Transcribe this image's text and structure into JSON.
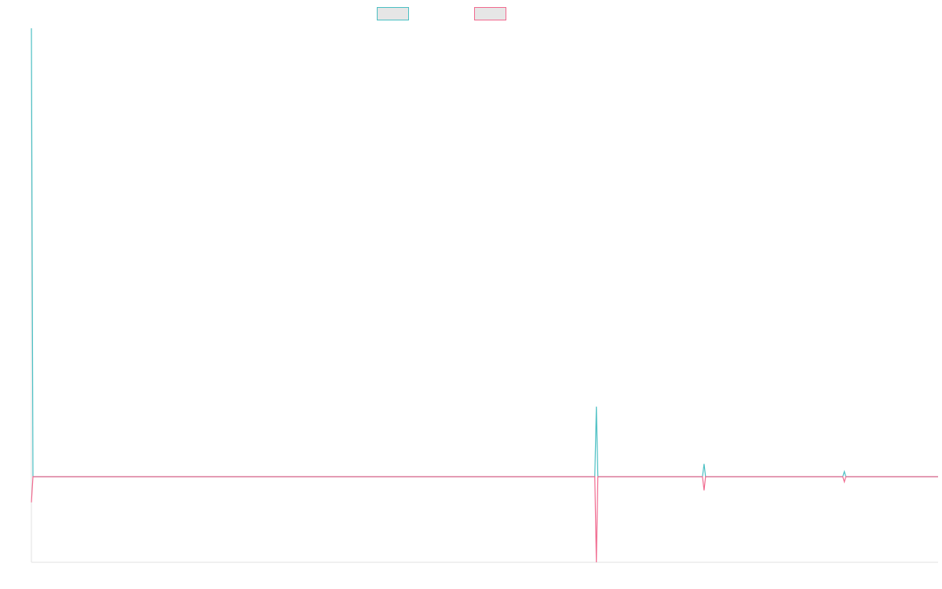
{
  "chart_data": {
    "type": "line",
    "title": "",
    "xlabel": "",
    "ylabel": "",
    "grid": false,
    "legend_placement": "top-center",
    "x_range": [
      0,
      1170
    ],
    "ylim": [
      -1,
      5.25
    ],
    "series": [
      {
        "color": "#4bbfc3",
        "fill": "#e6e6e6",
        "x": [
          0,
          2,
          727,
          729,
          731,
          866,
          868,
          870,
          1047,
          1049,
          1051,
          1170
        ],
        "y": [
          5.25,
          0,
          0,
          0.82,
          0,
          0,
          0.15,
          0,
          0,
          0.06,
          0,
          0
        ]
      },
      {
        "color": "#f06a8f",
        "fill": "#e6e6e6",
        "x": [
          0,
          2,
          727,
          729,
          731,
          866,
          868,
          870,
          1047,
          1049,
          1051,
          1170
        ],
        "y": [
          -0.3,
          0,
          0,
          -1,
          0,
          0,
          -0.16,
          0,
          0,
          -0.06,
          0,
          0
        ]
      }
    ]
  }
}
